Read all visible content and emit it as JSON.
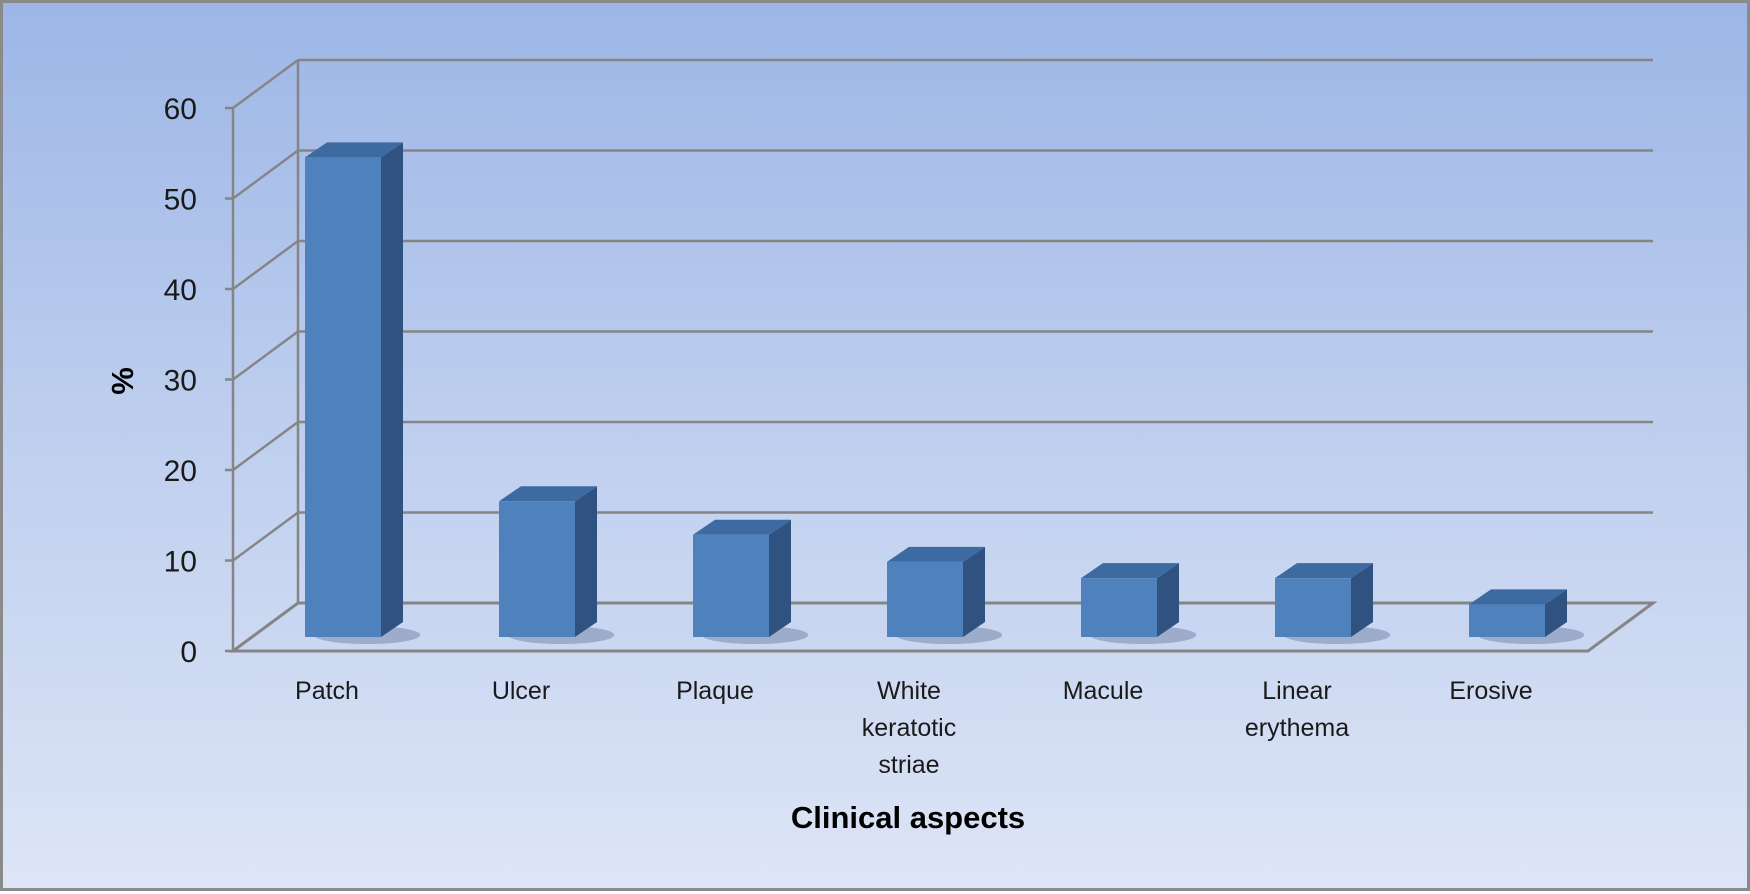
{
  "chart_data": {
    "type": "bar",
    "style": "3d-column",
    "categories": [
      "Patch",
      "Ulcer",
      "Plaque",
      "White keratotic striae",
      "Macule",
      "Linear erythema",
      "Erosive"
    ],
    "category_label_lines": [
      [
        "Patch"
      ],
      [
        "Ulcer"
      ],
      [
        "Plaque"
      ],
      [
        "White",
        "keratotic",
        "striae"
      ],
      [
        "Macule"
      ],
      [
        "Linear",
        "erythema"
      ],
      [
        "Erosive"
      ]
    ],
    "values": [
      53,
      15,
      11.3,
      8.3,
      6.5,
      6.5,
      3.6
    ],
    "xlabel": "Clinical aspects",
    "ylabel": "%",
    "ylim": [
      0,
      60
    ],
    "yticks": [
      "0",
      "10",
      "20",
      "30",
      "40",
      "50",
      "60"
    ],
    "grid": true,
    "legend": "none",
    "colors": {
      "bar_front": "#4f81bd",
      "bar_side": "#2f5280",
      "bar_top": "#3d6aa0",
      "grid": "#858585"
    }
  }
}
